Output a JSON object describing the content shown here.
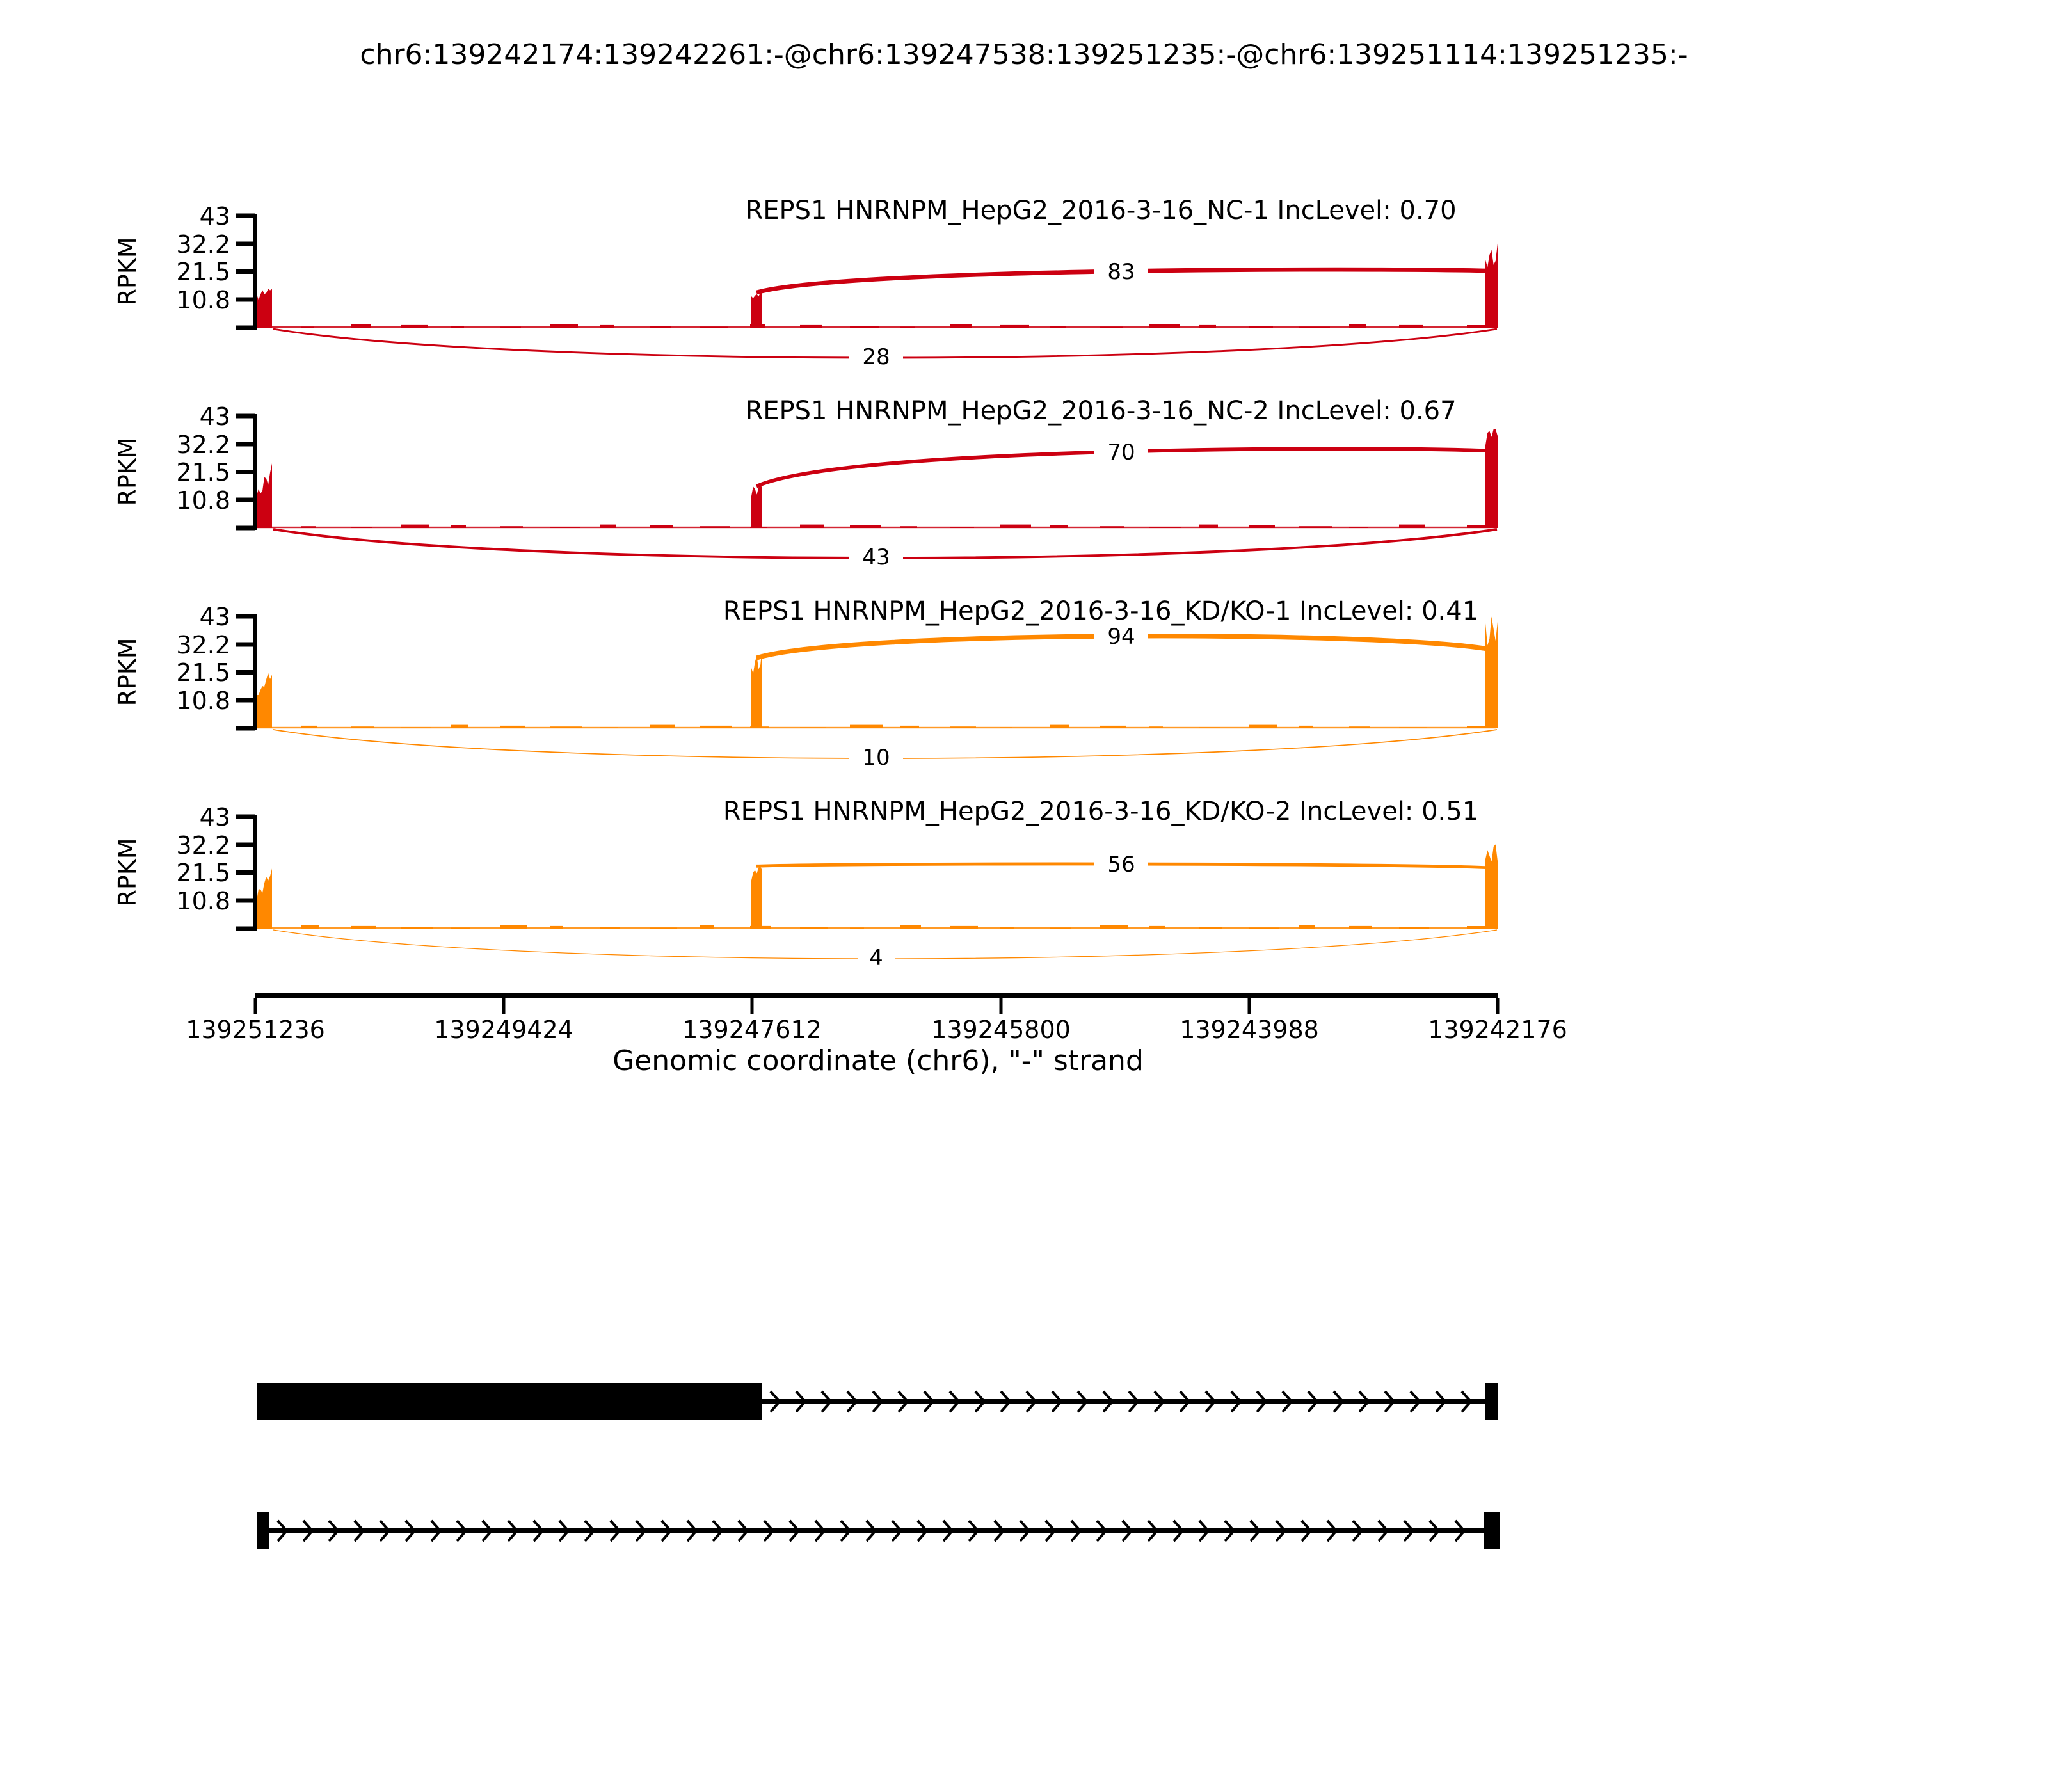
{
  "title": "chr6:139242174:139242261:-@chr6:139247538:139251235:-@chr6:139251114:139251235:-",
  "chart_data": {
    "type": "sashimi",
    "gene": "REPS1",
    "y_axis": {
      "label": "RPKM",
      "ticks": [
        "43",
        "32.2",
        "21.5",
        "10.8"
      ],
      "max_rpkm": 43
    },
    "x_axis": {
      "label": "Genomic coordinate (chr6), \"-\" strand",
      "ticks": [
        "139251236",
        "139249424",
        "139247612",
        "139245800",
        "139243988",
        "139242176"
      ]
    },
    "tracks": [
      {
        "label": "REPS1 HNRNPM_HepG2_2016-3-16_NC-1 IncLevel: 0.70",
        "sample": "HNRNPM_HepG2_2016-3-16_NC-1",
        "inc_level": "0.70",
        "color": "#CC0011",
        "junctions": [
          {
            "type": "inclusion",
            "count": 83
          },
          {
            "type": "skipping",
            "count": 28
          }
        ],
        "peaks_rpkm": {
          "left_exon": 15,
          "middle_exon": 13.5,
          "right_exon": 28
        }
      },
      {
        "label": "REPS1 HNRNPM_HepG2_2016-3-16_NC-2 IncLevel: 0.67",
        "sample": "HNRNPM_HepG2_2016-3-16_NC-2",
        "inc_level": "0.67",
        "color": "#CC0011",
        "junctions": [
          {
            "type": "inclusion",
            "count": 70
          },
          {
            "type": "skipping",
            "count": 43
          }
        ],
        "peaks_rpkm": {
          "left_exon": 22,
          "middle_exon": 16,
          "right_exon": 38
        }
      },
      {
        "label": "REPS1 HNRNPM_HepG2_2016-3-16_KD/KO-1 IncLevel: 0.41",
        "sample": "HNRNPM_HepG2_2016-3-16_KD/KO-1",
        "inc_level": "0.41",
        "color": "#FF8800",
        "junctions": [
          {
            "type": "inclusion",
            "count": 94
          },
          {
            "type": "skipping",
            "count": 10
          }
        ],
        "peaks_rpkm": {
          "left_exon": 22,
          "middle_exon": 27,
          "right_exon": 39
        }
      },
      {
        "label": "REPS1 HNRNPM_HepG2_2016-3-16_KD/KO-2 IncLevel: 0.51",
        "sample": "HNRNPM_HepG2_2016-3-16_KD/KO-2",
        "inc_level": "0.51",
        "color": "#FF8800",
        "junctions": [
          {
            "type": "inclusion",
            "count": 56
          },
          {
            "type": "skipping",
            "count": 4
          }
        ],
        "peaks_rpkm": {
          "left_exon": 22,
          "middle_exon": 24,
          "right_exon": 30
        }
      }
    ],
    "transcripts": [
      {
        "id": "isoform-1",
        "structure": "long exon then intron with strand arrows then short exon"
      },
      {
        "id": "isoform-2",
        "structure": "short exon then long intron with strand arrows then short exon"
      }
    ]
  }
}
